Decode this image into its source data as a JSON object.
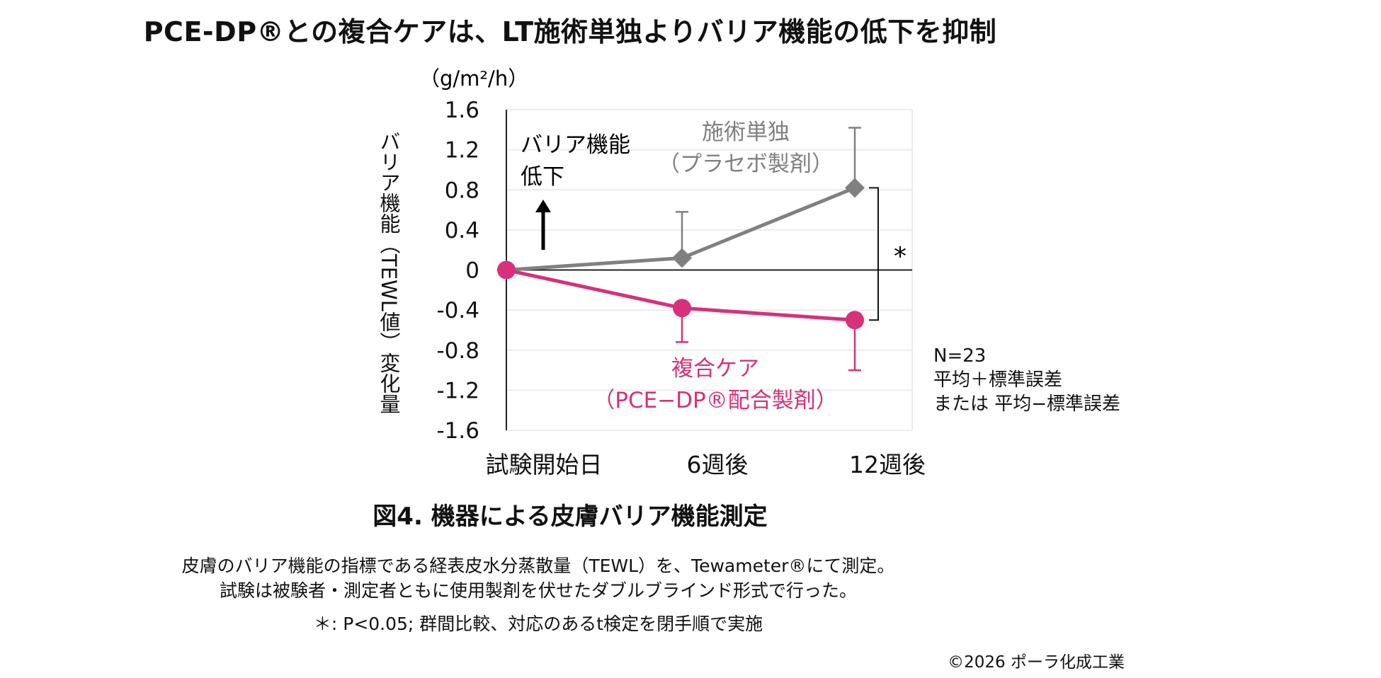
{
  "title": "PCE-DP®との複合ケアは、LT施術単独よりバリア機能の低下を抑制",
  "chart_data": {
    "type": "line",
    "ylabel": "バリア機能（TEWL値）変化量",
    "unit": "（g/m²/h）",
    "ylim": [
      -1.6,
      1.6
    ],
    "yticks": [
      "1.6",
      "1.2",
      "0.8",
      "0.4",
      "0",
      "-0.4",
      "-0.8",
      "-1.2",
      "-1.6"
    ],
    "ytick_values": [
      1.6,
      1.2,
      0.8,
      0.4,
      0,
      -0.4,
      -0.8,
      -1.2,
      -1.6
    ],
    "categories": [
      "試験開始日",
      "6週後",
      "12週後"
    ],
    "series": [
      {
        "name": "施術単独（プラセボ製剤）",
        "name_line1": "施術単独",
        "name_line2": "（プラセボ製剤）",
        "color": "#808080",
        "marker": "diamond",
        "values": [
          0,
          0.12,
          0.82
        ],
        "error": [
          0,
          0.46,
          0.6
        ],
        "error_direction": "up"
      },
      {
        "name": "複合ケア（PCE−DP®配合製剤）",
        "name_line1": "複合ケア",
        "name_line2": "（PCE−DP®配合製剤）",
        "color": "#d6317a",
        "marker": "circle",
        "values": [
          0,
          -0.38,
          -0.5
        ],
        "error": [
          0,
          0.34,
          0.5
        ],
        "error_direction": "down"
      }
    ],
    "annotation_arrow": [
      "バリア機能",
      "低下"
    ],
    "significance": "*",
    "grid": true
  },
  "notes": [
    "N=23",
    "平均＋標準誤差",
    "または 平均−標準誤差"
  ],
  "figure_caption": "図4. 機器による皮膚バリア機能測定",
  "description": [
    "皮膚のバリア機能の指標である経表皮水分蒸散量（TEWL）を、Tewameter®にて測定。",
    "試験は被験者・測定者ともに使用製剤を伏せたダブルブラインド形式で行った。",
    "＊: P<0.05; 群間比較、対応のあるt検定を閉手順で実施"
  ],
  "copyright": "©2026 ポーラ化成工業"
}
